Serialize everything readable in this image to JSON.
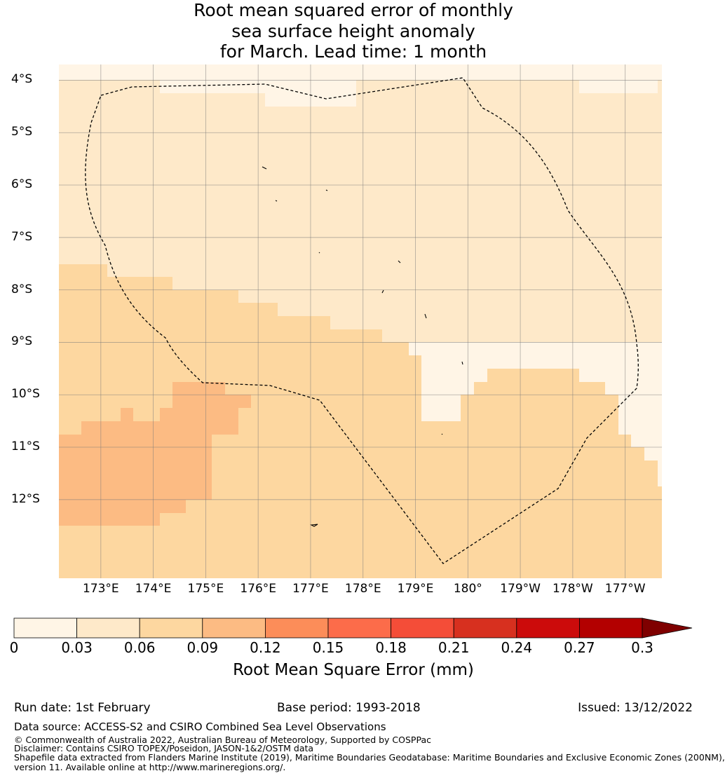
{
  "title": {
    "line1": "Root mean squared error of monthly",
    "line2": "sea surface height anomaly",
    "line3": "for March. Lead time: 1 month"
  },
  "map": {
    "lat_labels": [
      "4°S",
      "5°S",
      "6°S",
      "7°S",
      "8°S",
      "9°S",
      "10°S",
      "11°S",
      "12°S"
    ],
    "lon_labels": [
      "173°E",
      "174°E",
      "175°E",
      "176°E",
      "177°E",
      "178°E",
      "179°E",
      "180°",
      "179°W",
      "178°W",
      "177°W"
    ],
    "lat_range": [
      -13.5,
      -3.7
    ],
    "lon_range": [
      172.2,
      183.7
    ],
    "lon_note": "Longitudes east of 180 are expressed as 180+ (e.g. 179°W = 181)",
    "colors": {
      "band_0_03": "#fff5e6",
      "band_0_03_0_06": "#fee9c9",
      "band_0_06_0_09": "#fdd7a0",
      "band_0_09_0_12": "#fcbb83"
    }
  },
  "colorbar": {
    "ticks": [
      "0",
      "0.03",
      "0.06",
      "0.09",
      "0.12",
      "0.15",
      "0.18",
      "0.21",
      "0.24",
      "0.27",
      "0.3"
    ],
    "colors": [
      "#fff5e6",
      "#fee9c9",
      "#fdd7a0",
      "#fcbb83",
      "#fc8d59",
      "#fc6c4a",
      "#f44d38",
      "#d7301f",
      "#cc0b0b",
      "#b30000",
      "#7f0000"
    ],
    "label": "Root Mean Square Error (mm)"
  },
  "footer": {
    "run_date": "Run date: 1st February",
    "base_period": "Base period: 1993-2018",
    "issued": "Issued: 13/12/2022",
    "data_source": "Data source: ACCESS-S2 and CSIRO Combined Sea Level Observations",
    "copyright": "© Commonwealth of Australia 2022, Australian Bureau of Meteorology, Supported by COSPPac",
    "disclaimer": "Disclaimer: Contains CSIRO TOPEX/Poseidon, JASON-1&2/OSTM data",
    "shapefile_1": "Shapefile data extracted from Flanders Marine Institute (2019), Maritime Boundaries Geodatabase: Maritime Boundaries and Exclusive Economic Zones (200NM),",
    "shapefile_2": "version 11. Available online at http://www.marineregions.org/."
  }
}
